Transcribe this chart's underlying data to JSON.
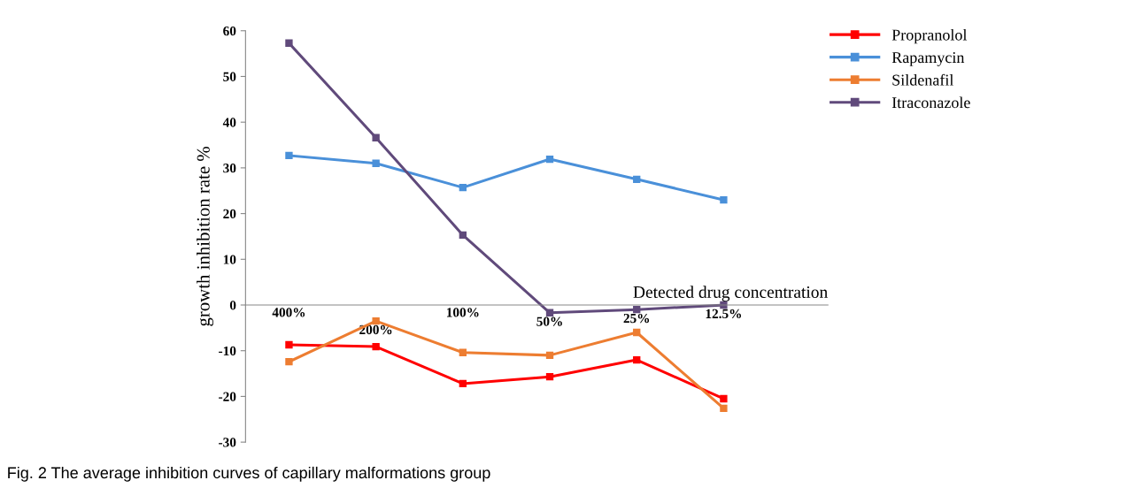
{
  "chart_data": {
    "type": "line",
    "ylabel": "growth inhibition rate %",
    "xlabel": "Detected drug concentration",
    "categories": [
      "400%",
      "200%",
      "100%",
      "50%",
      "25%",
      "12.5%"
    ],
    "series": [
      {
        "name": "Propranolol",
        "color": "#ff0000",
        "values": [
          -8.7,
          -9.1,
          -17.2,
          -15.7,
          -12.0,
          -20.5
        ]
      },
      {
        "name": "Rapamycin",
        "color": "#4a90d9",
        "values": [
          32.7,
          31.0,
          25.7,
          31.9,
          27.5,
          23.0
        ]
      },
      {
        "name": "Sildenafil",
        "color": "#ed7d31",
        "values": [
          -12.4,
          -3.5,
          -10.4,
          -11.0,
          -6.0,
          -22.6
        ]
      },
      {
        "name": "Itraconazole",
        "color": "#604a7b",
        "values": [
          57.3,
          36.6,
          15.3,
          -1.7,
          -1.0,
          0.0
        ]
      }
    ],
    "ylim": [
      -30,
      60
    ],
    "yticks": [
      -30,
      -20,
      -10,
      0,
      10,
      20,
      30,
      40,
      50,
      60
    ],
    "marker": "square",
    "line_style": "solid",
    "legend": "top right",
    "grid": false,
    "annotations": [
      "Fig. 2 The average inhibition curves of capillary malformations group"
    ]
  }
}
